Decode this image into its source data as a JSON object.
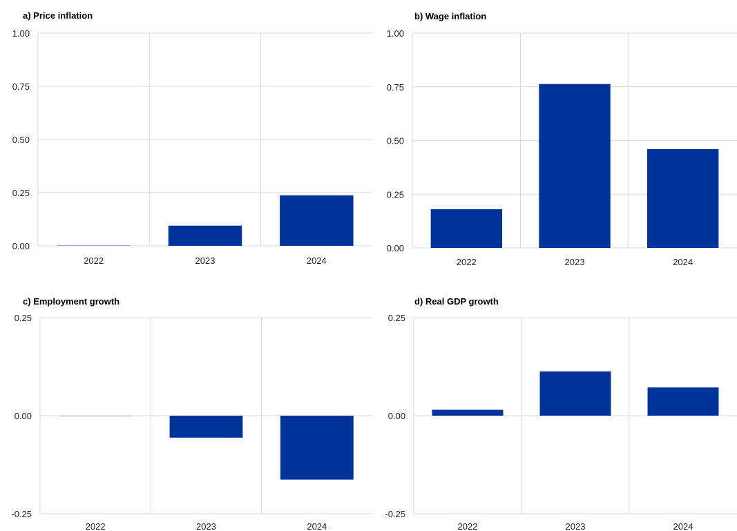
{
  "chart_data": [
    {
      "type": "bar",
      "title": "a) Price inflation",
      "categories": [
        "2022",
        "2023",
        "2024"
      ],
      "values": [
        0.003,
        0.095,
        0.237
      ],
      "ylim": [
        0,
        1
      ],
      "yticks": [
        "1.00",
        "0.75",
        "0.50",
        "0.25",
        "0.00"
      ],
      "grid": true,
      "colors": [
        "#8fa3d6",
        "#003399",
        "#003399"
      ]
    },
    {
      "type": "bar",
      "title": "b) Wage inflation",
      "categories": [
        "2022",
        "2023",
        "2024"
      ],
      "values": [
        0.18,
        0.763,
        0.46
      ],
      "ylim": [
        0,
        1
      ],
      "yticks": [
        "1.00",
        "0.75",
        "0.50",
        "0.25",
        "0.00"
      ],
      "grid": true,
      "colors": [
        "#003399",
        "#003399",
        "#003399"
      ]
    },
    {
      "type": "bar",
      "title": "c) Employment growth",
      "categories": [
        "2022",
        "2023",
        "2024"
      ],
      "values": [
        -0.001,
        -0.056,
        -0.163
      ],
      "ylim": [
        -0.25,
        0.25
      ],
      "yticks": [
        "0.25",
        "0.00",
        "-0.25"
      ],
      "grid": true,
      "colors": [
        "#aab7dd",
        "#003399",
        "#003399"
      ]
    },
    {
      "type": "bar",
      "title": "d) Real GDP growth",
      "categories": [
        "2022",
        "2023",
        "2024"
      ],
      "values": [
        0.015,
        0.113,
        0.072
      ],
      "ylim": [
        -0.25,
        0.25
      ],
      "yticks": [
        "0.25",
        "0.00",
        "-0.25"
      ],
      "grid": true,
      "colors": [
        "#003399",
        "#003399",
        "#003399"
      ]
    }
  ]
}
